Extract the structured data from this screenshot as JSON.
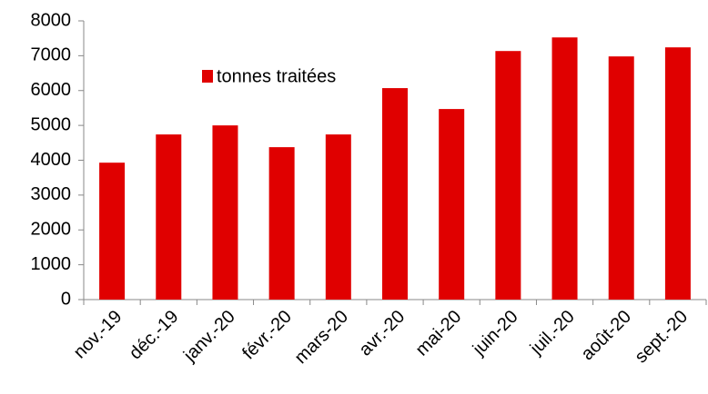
{
  "chart_data": {
    "type": "bar",
    "categories": [
      "nov.-19",
      "déc.-19",
      "janv.-20",
      "févr.-20",
      "mars-20",
      "avr.-20",
      "mai-20",
      "juin-20",
      "juil.-20",
      "août-20",
      "sept.-20"
    ],
    "series": [
      {
        "name": "tonnes traitées",
        "color": "#e00000",
        "values": [
          3930,
          4740,
          5000,
          4375,
          4740,
          6070,
          5470,
          7135,
          7525,
          6980,
          7240
        ]
      }
    ],
    "ylim": [
      0,
      8000
    ],
    "yticks": [
      0,
      1000,
      2000,
      3000,
      4000,
      5000,
      6000,
      7000,
      8000
    ],
    "grid": false,
    "legend": "top-left"
  }
}
